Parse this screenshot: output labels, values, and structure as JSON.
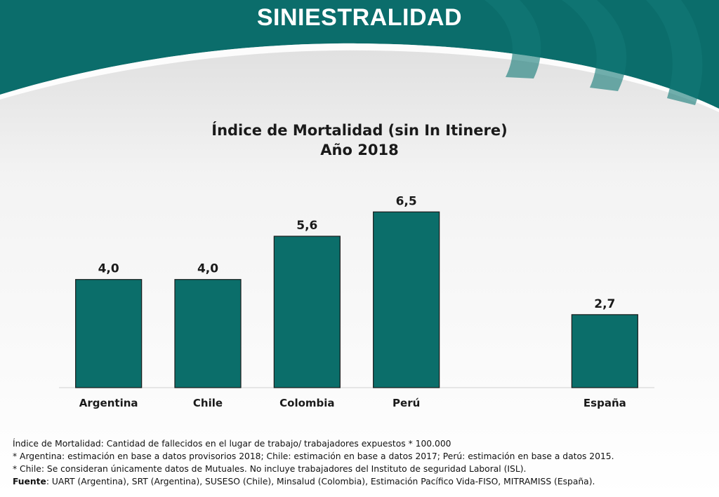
{
  "header": {
    "title": "SINIESTRALIDAD"
  },
  "colors": {
    "brand": "#0b6d6b",
    "bar": "#0b6e6a",
    "bar_border": "#1a1a1a"
  },
  "chart_data": {
    "type": "bar",
    "title": "Índice de Mortalidad (sin In Itinere)",
    "subtitle": "Año 2018",
    "categories": [
      "Argentina",
      "Chile",
      "Colombia",
      "Perú",
      "",
      "España"
    ],
    "values": [
      4.0,
      4.0,
      5.6,
      6.5,
      null,
      2.7
    ],
    "data_labels": [
      "4,0",
      "4,0",
      "5,6",
      "6,5",
      "",
      "2,7"
    ],
    "ylim": [
      0,
      7
    ],
    "xlabel": "",
    "ylabel": "",
    "grid": false
  },
  "notes": {
    "line1": "Índice de Mortalidad: Cantidad de fallecidos en el lugar de trabajo/ trabajadores expuestos * 100.000",
    "line2": "* Argentina: estimación en base a datos provisorios 2018; Chile: estimación en base a datos 2017; Perú: estimación en base a datos 2015.",
    "line3": "* Chile: Se consideran únicamente datos de Mutuales. No incluye trabajadores del Instituto de seguridad Laboral (ISL).",
    "source_label": "Fuente",
    "source_text": ": UART (Argentina), SRT (Argentina), SUSESO (Chile), Minsalud (Colombia), Estimación Pacífico Vida-FISO, MITRAMISS (España)."
  }
}
